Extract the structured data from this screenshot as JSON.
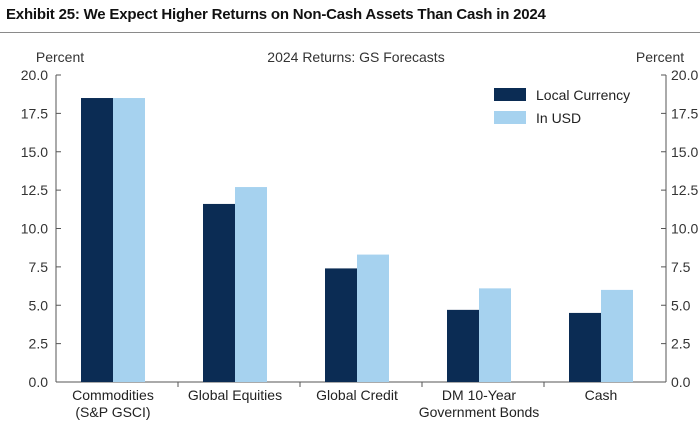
{
  "exhibit_title": "Exhibit 25: We Expect Higher Returns on Non-Cash Assets Than Cash in 2024",
  "chart_data": {
    "type": "bar",
    "title": "2024 Returns: GS Forecasts",
    "ylabel_left": "Percent",
    "ylabel_right": "Percent",
    "ylim": [
      0,
      20
    ],
    "yticks": [
      "0.0",
      "2.5",
      "5.0",
      "7.5",
      "10.0",
      "12.5",
      "15.0",
      "17.5",
      "20.0"
    ],
    "categories": [
      [
        "Commodities",
        "(S&P GSCI)"
      ],
      [
        "Global Equities"
      ],
      [
        "Global Credit"
      ],
      [
        "DM 10-Year",
        "Government Bonds"
      ],
      [
        "Cash"
      ]
    ],
    "series": [
      {
        "name": "Local Currency",
        "color": "#0b2c54",
        "values": [
          18.5,
          11.6,
          7.4,
          4.7,
          4.5
        ]
      },
      {
        "name": "In USD",
        "color": "#a6d2ef",
        "values": [
          18.5,
          12.7,
          8.3,
          6.1,
          6.0
        ]
      }
    ],
    "legend": "top-right"
  }
}
